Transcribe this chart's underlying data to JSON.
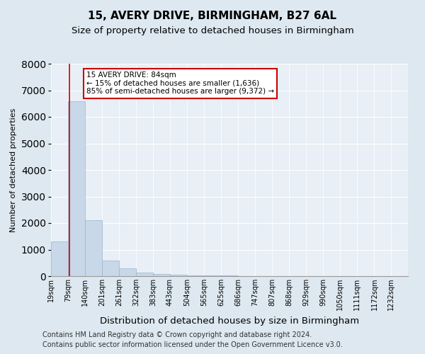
{
  "title1": "15, AVERY DRIVE, BIRMINGHAM, B27 6AL",
  "title2": "Size of property relative to detached houses in Birmingham",
  "xlabel": "Distribution of detached houses by size in Birmingham",
  "ylabel": "Number of detached properties",
  "property_sqm": 84,
  "bin_labels": [
    "19sqm",
    "79sqm",
    "140sqm",
    "201sqm",
    "261sqm",
    "322sqm",
    "383sqm",
    "443sqm",
    "504sqm",
    "565sqm",
    "625sqm",
    "686sqm",
    "747sqm",
    "807sqm",
    "868sqm",
    "929sqm",
    "990sqm",
    "1050sqm",
    "1111sqm",
    "1172sqm",
    "1232sqm"
  ],
  "bin_edges": [
    19,
    79,
    140,
    201,
    261,
    322,
    383,
    443,
    504,
    565,
    625,
    686,
    747,
    807,
    868,
    929,
    990,
    1050,
    1111,
    1172,
    1232
  ],
  "bar_heights": [
    1300,
    6600,
    2100,
    600,
    290,
    140,
    90,
    55,
    40,
    20,
    15,
    4,
    2,
    1,
    0,
    0,
    0,
    0,
    0,
    0
  ],
  "bar_color": "#c8d8e8",
  "bar_edge_color": "#9ab4cc",
  "line_color": "#cc0000",
  "annotation_text": "15 AVERY DRIVE: 84sqm\n← 15% of detached houses are smaller (1,636)\n85% of semi-detached houses are larger (9,372) →",
  "annotation_box_color": "#ffffff",
  "annotation_border_color": "#cc0000",
  "ylim": [
    0,
    8000
  ],
  "yticks": [
    0,
    1000,
    2000,
    3000,
    4000,
    5000,
    6000,
    7000,
    8000
  ],
  "footnote1": "Contains HM Land Registry data © Crown copyright and database right 2024.",
  "footnote2": "Contains public sector information licensed under the Open Government Licence v3.0.",
  "bg_color": "#dde8f0",
  "plot_bg_color": "#e8eff6",
  "title1_fontsize": 11,
  "title2_fontsize": 9.5,
  "xlabel_fontsize": 9.5,
  "ylabel_fontsize": 8,
  "footnote_fontsize": 7,
  "tick_fontsize": 8
}
